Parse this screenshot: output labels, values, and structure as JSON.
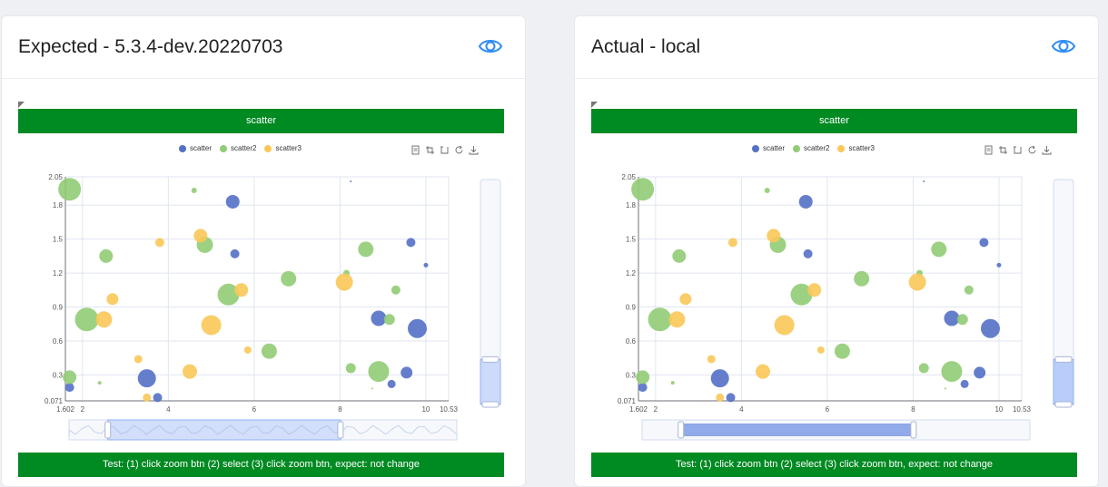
{
  "panels": [
    {
      "title": "Expected - 5.3.4-dev.20220703",
      "chart_title": "scatter",
      "test_text": "Test: (1) click zoom btn (2) select (3) click zoom btn, expect: not change"
    },
    {
      "title": "Actual - local",
      "chart_title": "scatter",
      "test_text": "Test: (1) click zoom btn (2) select (3) click zoom btn, expect: not change"
    }
  ],
  "toolbox_icons": [
    "data-view-icon",
    "zoom-icon",
    "zoom-reset-icon",
    "restore-icon",
    "save-image-icon"
  ],
  "colors": {
    "scatter": "#5470c6",
    "scatter2": "#91cc75",
    "scatter3": "#fac858",
    "title_bar": "#008a22",
    "eye": "#2d8cf0"
  },
  "chart_data": {
    "type": "scatter",
    "title": "scatter",
    "xlim": [
      1.602,
      10.53
    ],
    "ylim": [
      0.071,
      2.05
    ],
    "x_ticks": [
      "1.602",
      "2",
      "4",
      "6",
      "8",
      "10",
      "10.53"
    ],
    "y_ticks": [
      "2.05",
      "1.8",
      "1.5",
      "1.2",
      "0.9",
      "0.6",
      "0.3",
      "0.071"
    ],
    "grid": true,
    "legend_position": "top-center",
    "series": [
      {
        "name": "scatter",
        "points": [
          {
            "x": 5.5,
            "y": 1.83,
            "size": 15
          },
          {
            "x": 5.55,
            "y": 1.37,
            "size": 10
          },
          {
            "x": 9.65,
            "y": 1.47,
            "size": 10
          },
          {
            "x": 10.0,
            "y": 1.27,
            "size": 5
          },
          {
            "x": 8.9,
            "y": 0.8,
            "size": 17
          },
          {
            "x": 9.8,
            "y": 0.71,
            "size": 21
          },
          {
            "x": 3.5,
            "y": 0.27,
            "size": 20
          },
          {
            "x": 9.55,
            "y": 0.32,
            "size": 13
          },
          {
            "x": 9.2,
            "y": 0.22,
            "size": 9
          },
          {
            "x": 1.7,
            "y": 0.19,
            "size": 10
          },
          {
            "x": 3.75,
            "y": 0.1,
            "size": 10
          },
          {
            "x": 8.25,
            "y": 2.01,
            "size": 2
          }
        ]
      },
      {
        "name": "scatter2",
        "points": [
          {
            "x": 1.7,
            "y": 1.94,
            "size": 25
          },
          {
            "x": 4.6,
            "y": 1.93,
            "size": 6
          },
          {
            "x": 2.55,
            "y": 1.35,
            "size": 15
          },
          {
            "x": 4.85,
            "y": 1.45,
            "size": 18
          },
          {
            "x": 8.6,
            "y": 1.41,
            "size": 17
          },
          {
            "x": 8.15,
            "y": 1.2,
            "size": 7
          },
          {
            "x": 6.8,
            "y": 1.15,
            "size": 17
          },
          {
            "x": 5.4,
            "y": 1.01,
            "size": 24
          },
          {
            "x": 9.3,
            "y": 1.05,
            "size": 10
          },
          {
            "x": 2.1,
            "y": 0.79,
            "size": 26
          },
          {
            "x": 9.15,
            "y": 0.79,
            "size": 12
          },
          {
            "x": 6.35,
            "y": 0.51,
            "size": 17
          },
          {
            "x": 8.25,
            "y": 0.36,
            "size": 11
          },
          {
            "x": 8.9,
            "y": 0.33,
            "size": 23
          },
          {
            "x": 1.7,
            "y": 0.28,
            "size": 15
          },
          {
            "x": 2.4,
            "y": 0.23,
            "size": 4
          },
          {
            "x": 8.75,
            "y": 0.18,
            "size": 2
          }
        ]
      },
      {
        "name": "scatter3",
        "points": [
          {
            "x": 4.75,
            "y": 1.53,
            "size": 15
          },
          {
            "x": 3.8,
            "y": 1.47,
            "size": 10
          },
          {
            "x": 8.1,
            "y": 1.12,
            "size": 19
          },
          {
            "x": 5.7,
            "y": 1.05,
            "size": 15
          },
          {
            "x": 2.7,
            "y": 0.97,
            "size": 13
          },
          {
            "x": 2.5,
            "y": 0.79,
            "size": 18
          },
          {
            "x": 5.0,
            "y": 0.74,
            "size": 22
          },
          {
            "x": 5.85,
            "y": 0.52,
            "size": 8
          },
          {
            "x": 3.3,
            "y": 0.44,
            "size": 9
          },
          {
            "x": 4.5,
            "y": 0.33,
            "size": 16
          },
          {
            "x": 3.5,
            "y": 0.1,
            "size": 9
          }
        ]
      }
    ],
    "dataZoom": {
      "left_panel": {
        "x_start": 0.1,
        "x_end": 0.7,
        "y_start": 0.0,
        "y_end": 0.2
      },
      "right_panel": {
        "x_start": 0.1,
        "x_end": 0.7,
        "y_start": 0.0,
        "y_end": 0.2
      }
    }
  }
}
